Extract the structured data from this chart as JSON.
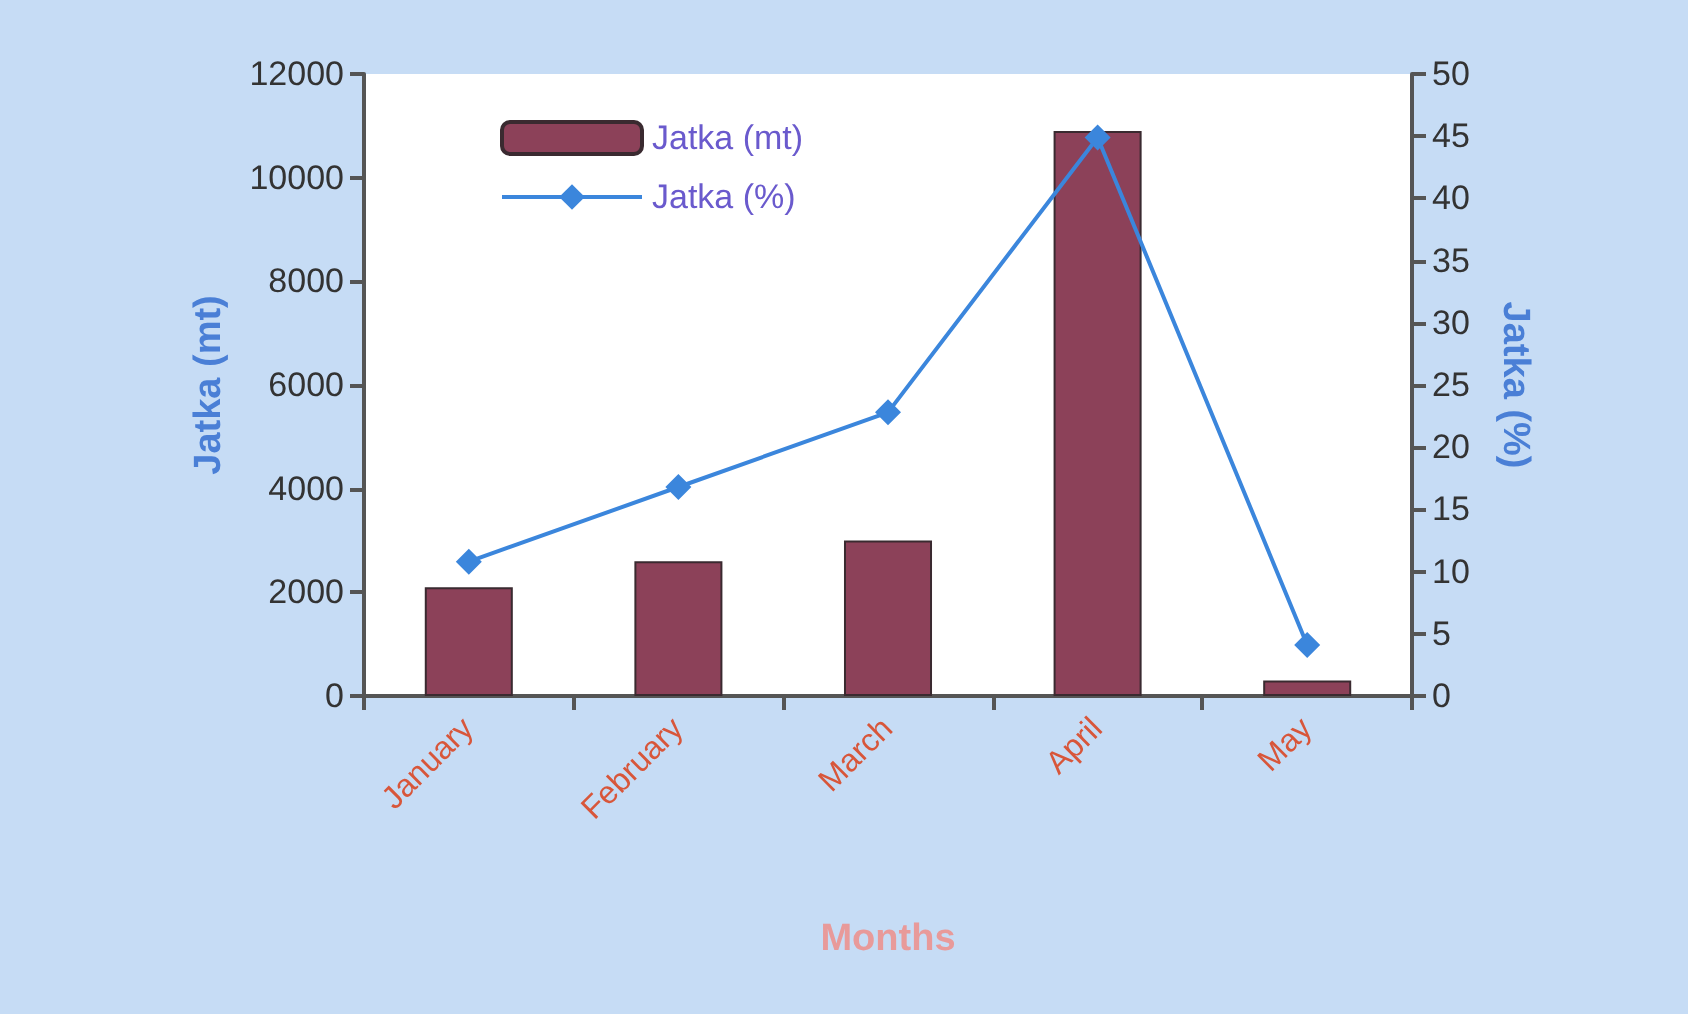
{
  "chart_data": {
    "type": "bar",
    "xlabel": "Months",
    "ylabel": "Jatka (mt)",
    "y2label": "Jatka (%)",
    "categories": [
      "January",
      "February",
      "March",
      "April",
      "May"
    ],
    "series": [
      {
        "name": "Jatka (mt)",
        "color": "#8c4159",
        "values": [
          2100,
          2600,
          3000,
          10900,
          300
        ]
      },
      {
        "name": "Jatka (%)",
        "type": "line",
        "axis": "y2",
        "color": "#3b86dc",
        "marker": "diamond",
        "values": [
          10.8,
          16.8,
          22.8,
          44.9,
          4.1
        ]
      }
    ],
    "ylim": [
      0,
      12000
    ],
    "yticks": [
      0,
      2000,
      4000,
      6000,
      8000,
      10000,
      12000
    ],
    "y2lim": [
      0,
      50
    ],
    "y2ticks": [
      0,
      5,
      10,
      15,
      20,
      25,
      30,
      35,
      40,
      45,
      50
    ],
    "grid": false,
    "legend": "top left"
  }
}
